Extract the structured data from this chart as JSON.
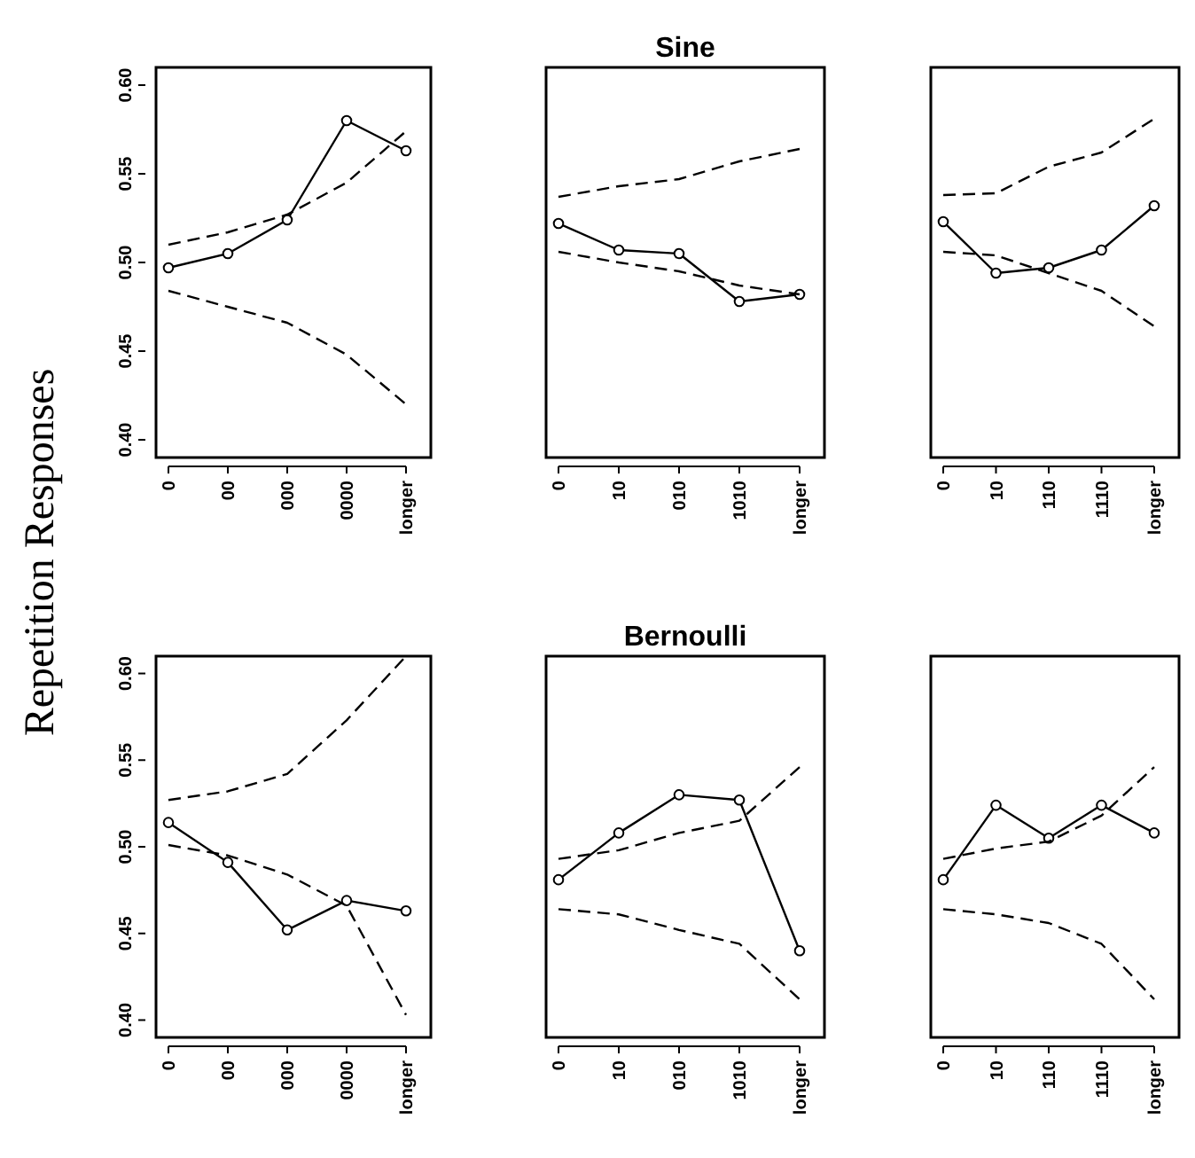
{
  "chart_data": [
    {
      "type": "line",
      "ylabel": "Repetition Responses",
      "categories": [
        "0",
        "00",
        "000",
        "0000",
        "longer"
      ],
      "ylim": [
        0.39,
        0.61
      ],
      "yticks": [
        {
          "value": 0.4,
          "label": "0.40"
        },
        {
          "value": 0.45,
          "label": "0.45"
        },
        {
          "value": 0.5,
          "label": "0.50"
        },
        {
          "value": 0.55,
          "label": "0.55"
        },
        {
          "value": 0.6,
          "label": "0.60"
        }
      ],
      "grid": false,
      "series": [
        {
          "color": "#000000",
          "marker": "circle",
          "line_style": "solid",
          "values": [
            0.497,
            0.505,
            0.524,
            0.58,
            0.563
          ]
        },
        {
          "color": "#000000",
          "marker": "none",
          "line_style": "dashed",
          "values": [
            0.51,
            0.517,
            0.527,
            0.545,
            0.574
          ]
        },
        {
          "color": "#000000",
          "marker": "none",
          "line_style": "dashed",
          "values": [
            0.484,
            0.475,
            0.466,
            0.448,
            0.42
          ]
        }
      ]
    },
    {
      "type": "line",
      "title": "Sine",
      "categories": [
        "0",
        "10",
        "010",
        "1010",
        "longer"
      ],
      "ylim": [
        0.39,
        0.61
      ],
      "tick_labels": "x",
      "grid": false,
      "series": [
        {
          "color": "#000000",
          "marker": "circle",
          "line_style": "solid",
          "values": [
            0.522,
            0.507,
            0.505,
            0.478,
            0.482
          ]
        },
        {
          "color": "#000000",
          "marker": "none",
          "line_style": "dashed",
          "values": [
            0.537,
            0.543,
            0.547,
            0.557,
            0.564
          ]
        },
        {
          "color": "#000000",
          "marker": "none",
          "line_style": "dashed",
          "values": [
            0.506,
            0.5,
            0.495,
            0.487,
            0.482
          ]
        }
      ]
    },
    {
      "type": "line",
      "categories": [
        "0",
        "10",
        "110",
        "1110",
        "longer"
      ],
      "ylim": [
        0.39,
        0.61
      ],
      "tick_labels": "x",
      "grid": false,
      "series": [
        {
          "color": "#000000",
          "marker": "circle",
          "line_style": "solid",
          "values": [
            0.523,
            0.494,
            0.497,
            0.507,
            0.532
          ]
        },
        {
          "color": "#000000",
          "marker": "none",
          "line_style": "dashed",
          "values": [
            0.538,
            0.539,
            0.554,
            0.562,
            0.581
          ]
        },
        {
          "color": "#000000",
          "marker": "none",
          "line_style": "dashed",
          "values": [
            0.506,
            0.504,
            0.494,
            0.484,
            0.464
          ]
        }
      ]
    },
    {
      "type": "line",
      "categories": [
        "0",
        "00",
        "000",
        "0000",
        "longer"
      ],
      "ylim": [
        0.39,
        0.61
      ],
      "yticks": [
        {
          "value": 0.4,
          "label": "0.40"
        },
        {
          "value": 0.45,
          "label": "0.45"
        },
        {
          "value": 0.5,
          "label": "0.50"
        },
        {
          "value": 0.55,
          "label": "0.55"
        },
        {
          "value": 0.6,
          "label": "0.60"
        }
      ],
      "grid": false,
      "series": [
        {
          "color": "#000000",
          "marker": "circle",
          "line_style": "solid",
          "values": [
            0.514,
            0.491,
            0.452,
            0.469,
            0.463
          ]
        },
        {
          "color": "#000000",
          "marker": "none",
          "line_style": "dashed",
          "values": [
            0.527,
            0.532,
            0.542,
            0.573,
            0.61
          ]
        },
        {
          "color": "#000000",
          "marker": "none",
          "line_style": "dashed",
          "values": [
            0.501,
            0.495,
            0.484,
            0.466,
            0.403
          ]
        }
      ]
    },
    {
      "type": "line",
      "title": "Bernoulli",
      "categories": [
        "0",
        "10",
        "010",
        "1010",
        "longer"
      ],
      "ylim": [
        0.39,
        0.61
      ],
      "tick_labels": "x",
      "grid": false,
      "series": [
        {
          "color": "#000000",
          "marker": "circle",
          "line_style": "solid",
          "values": [
            0.481,
            0.508,
            0.53,
            0.527,
            0.44
          ]
        },
        {
          "color": "#000000",
          "marker": "none",
          "line_style": "dashed",
          "values": [
            0.493,
            0.498,
            0.508,
            0.515,
            0.546
          ]
        },
        {
          "color": "#000000",
          "marker": "none",
          "line_style": "dashed",
          "values": [
            0.464,
            0.461,
            0.452,
            0.444,
            0.412
          ]
        }
      ]
    },
    {
      "type": "line",
      "categories": [
        "0",
        "10",
        "110",
        "1110",
        "longer"
      ],
      "ylim": [
        0.39,
        0.61
      ],
      "tick_labels": "x",
      "grid": false,
      "series": [
        {
          "color": "#000000",
          "marker": "circle",
          "line_style": "solid",
          "values": [
            0.481,
            0.524,
            0.505,
            0.524,
            0.508
          ]
        },
        {
          "color": "#000000",
          "marker": "none",
          "line_style": "dashed",
          "values": [
            0.493,
            0.499,
            0.503,
            0.518,
            0.546
          ]
        },
        {
          "color": "#000000",
          "marker": "none",
          "line_style": "dashed",
          "values": [
            0.464,
            0.461,
            0.456,
            0.444,
            0.412
          ]
        }
      ]
    }
  ]
}
